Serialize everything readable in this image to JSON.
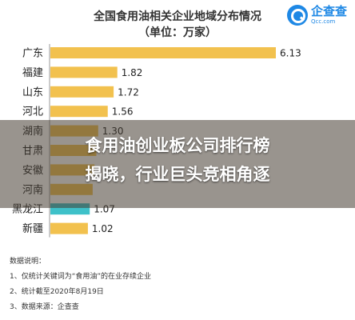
{
  "chart_data": {
    "type": "bar",
    "orientation": "horizontal",
    "title": "全国食用油相关企业地域分布情况",
    "subtitle": "（单位：万家）",
    "categories": [
      "广东",
      "福建",
      "山东",
      "河北",
      "湖南",
      "甘肃",
      "安徽",
      "河南",
      "黑龙江",
      "新疆"
    ],
    "values": [
      6.13,
      1.82,
      1.72,
      1.56,
      1.3,
      1.25,
      1.2,
      1.15,
      1.07,
      1.02
    ],
    "value_labels": [
      "6.13",
      "1.82",
      "1.72",
      "1.56",
      "1.30",
      "",
      "",
      "",
      "1.07",
      "1.02"
    ],
    "xlim": [
      0,
      6.13
    ],
    "grid": false,
    "colors": {
      "default": "#f2c14e",
      "highlight": "#3ec1c9"
    },
    "highlight_category": "黑龙江"
  },
  "logo": {
    "name": "企查查",
    "sub": "Qcc.com",
    "icon": "magnifier-icon"
  },
  "overlay": {
    "line1": "食用油创业板公司排行榜",
    "line2": "揭晓，行业巨头竞相角逐"
  },
  "notes": {
    "heading": "数据说明：",
    "items": [
      "1、仅统计关键词为“食用油”的在业存续企业",
      "2、统计截至2020年8月19日",
      "3、数据来源：企查查"
    ]
  }
}
